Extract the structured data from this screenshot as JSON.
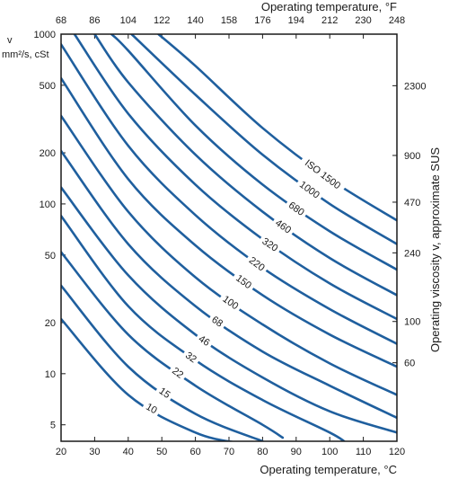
{
  "chart_data": {
    "type": "line",
    "x_axis_bottom": {
      "label": "Operating temperature, °C",
      "range": [
        20,
        120
      ],
      "ticks": [
        20,
        30,
        40,
        50,
        60,
        70,
        80,
        90,
        100,
        110,
        120
      ]
    },
    "x_axis_top": {
      "label": "Operating temperature, °F",
      "ticks": [
        "68",
        "86",
        "104",
        "122",
        "140",
        "158",
        "176",
        "194",
        "212",
        "230",
        "248"
      ]
    },
    "y_axis_left": {
      "label_symbol": "v",
      "label_units": "mm²/s, cSt",
      "scale": "log",
      "range": [
        4,
        1000
      ],
      "ticks": [
        5,
        10,
        20,
        50,
        100,
        200,
        500,
        1000
      ]
    },
    "y_axis_right": {
      "label": "Operating viscosity v, approximate SUS",
      "ticks": [
        {
          "cst": 11.6,
          "label": "60"
        },
        {
          "cst": 20.3,
          "label": "100"
        },
        {
          "cst": 51.5,
          "label": "240"
        },
        {
          "cst": 102.4,
          "label": "470"
        },
        {
          "cst": 193,
          "label": "900"
        },
        {
          "cst": 497,
          "label": "2300"
        }
      ]
    },
    "series": [
      {
        "name": "10",
        "points": [
          [
            20,
            21
          ],
          [
            40,
            7.5
          ],
          [
            60,
            4.5
          ],
          [
            73,
            3.9
          ]
        ]
      },
      {
        "name": "15",
        "points": [
          [
            20,
            33
          ],
          [
            40,
            11
          ],
          [
            60,
            5.8
          ],
          [
            80,
            4.0
          ]
        ]
      },
      {
        "name": "22",
        "points": [
          [
            20,
            52
          ],
          [
            40,
            17
          ],
          [
            60,
            8.5
          ],
          [
            80,
            5.0
          ],
          [
            86,
            4.2
          ]
        ]
      },
      {
        "name": "32",
        "points": [
          [
            20,
            85
          ],
          [
            40,
            25
          ],
          [
            60,
            12
          ],
          [
            80,
            7
          ],
          [
            100,
            4.5
          ],
          [
            105,
            3.9
          ]
        ]
      },
      {
        "name": "46",
        "points": [
          [
            20,
            125
          ],
          [
            40,
            38
          ],
          [
            60,
            17
          ],
          [
            80,
            9.5
          ],
          [
            100,
            6
          ],
          [
            120,
            4.5
          ]
        ]
      },
      {
        "name": "68",
        "points": [
          [
            20,
            205
          ],
          [
            40,
            58
          ],
          [
            60,
            25
          ],
          [
            80,
            13.5
          ],
          [
            100,
            8.5
          ],
          [
            120,
            5.5
          ]
        ]
      },
      {
        "name": "100",
        "points": [
          [
            20,
            330
          ],
          [
            40,
            90
          ],
          [
            60,
            37
          ],
          [
            80,
            19.5
          ],
          [
            100,
            11.5
          ],
          [
            120,
            7.5
          ]
        ]
      },
      {
        "name": "150",
        "points": [
          [
            20,
            550
          ],
          [
            40,
            140
          ],
          [
            60,
            57
          ],
          [
            80,
            29
          ],
          [
            100,
            17
          ],
          [
            120,
            11
          ]
        ]
      },
      {
        "name": "220",
        "points": [
          [
            20,
            870
          ],
          [
            40,
            220
          ],
          [
            60,
            86
          ],
          [
            80,
            42
          ],
          [
            100,
            24
          ],
          [
            120,
            15
          ]
        ]
      },
      {
        "name": "320",
        "points": [
          [
            24,
            1000
          ],
          [
            40,
            340
          ],
          [
            60,
            130
          ],
          [
            80,
            62
          ],
          [
            100,
            34
          ],
          [
            120,
            21
          ]
        ]
      },
      {
        "name": "460",
        "points": [
          [
            30,
            1000
          ],
          [
            40,
            520
          ],
          [
            60,
            195
          ],
          [
            80,
            90
          ],
          [
            100,
            48
          ],
          [
            120,
            29
          ]
        ]
      },
      {
        "name": "680",
        "points": [
          [
            35,
            1000
          ],
          [
            40,
            800
          ],
          [
            60,
            290
          ],
          [
            80,
            130
          ],
          [
            100,
            69
          ],
          [
            120,
            41
          ]
        ]
      },
      {
        "name": "1000",
        "points": [
          [
            41,
            1000
          ],
          [
            60,
            440
          ],
          [
            80,
            195
          ],
          [
            100,
            100
          ],
          [
            120,
            58
          ]
        ]
      },
      {
        "name": "ISO 1500",
        "points": [
          [
            49,
            1000
          ],
          [
            60,
            650
          ],
          [
            80,
            280
          ],
          [
            100,
            140
          ],
          [
            120,
            80
          ]
        ]
      }
    ],
    "line_color": "#1f5f9e",
    "grid": false
  }
}
